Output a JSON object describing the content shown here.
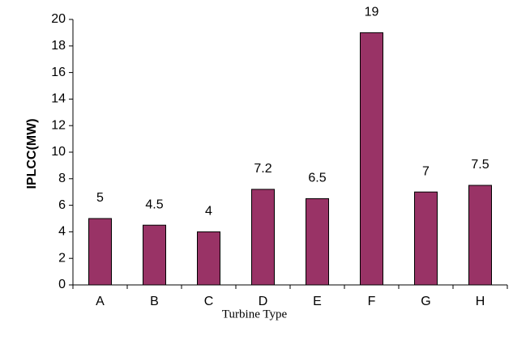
{
  "chart_data": {
    "type": "bar",
    "y_label": "IPLCC(MW)",
    "x_label": "Turbine Type",
    "categories": [
      "A",
      "B",
      "C",
      "D",
      "E",
      "F",
      "G",
      "H"
    ],
    "values": [
      5,
      4.5,
      4,
      7.2,
      6.5,
      19,
      7,
      7.5
    ],
    "color": "#993366",
    "ylim": [
      0,
      20
    ],
    "yticks": [
      0,
      2,
      4,
      6,
      8,
      10,
      12,
      14,
      16,
      18,
      20
    ],
    "grid": false,
    "data_labels": true
  }
}
